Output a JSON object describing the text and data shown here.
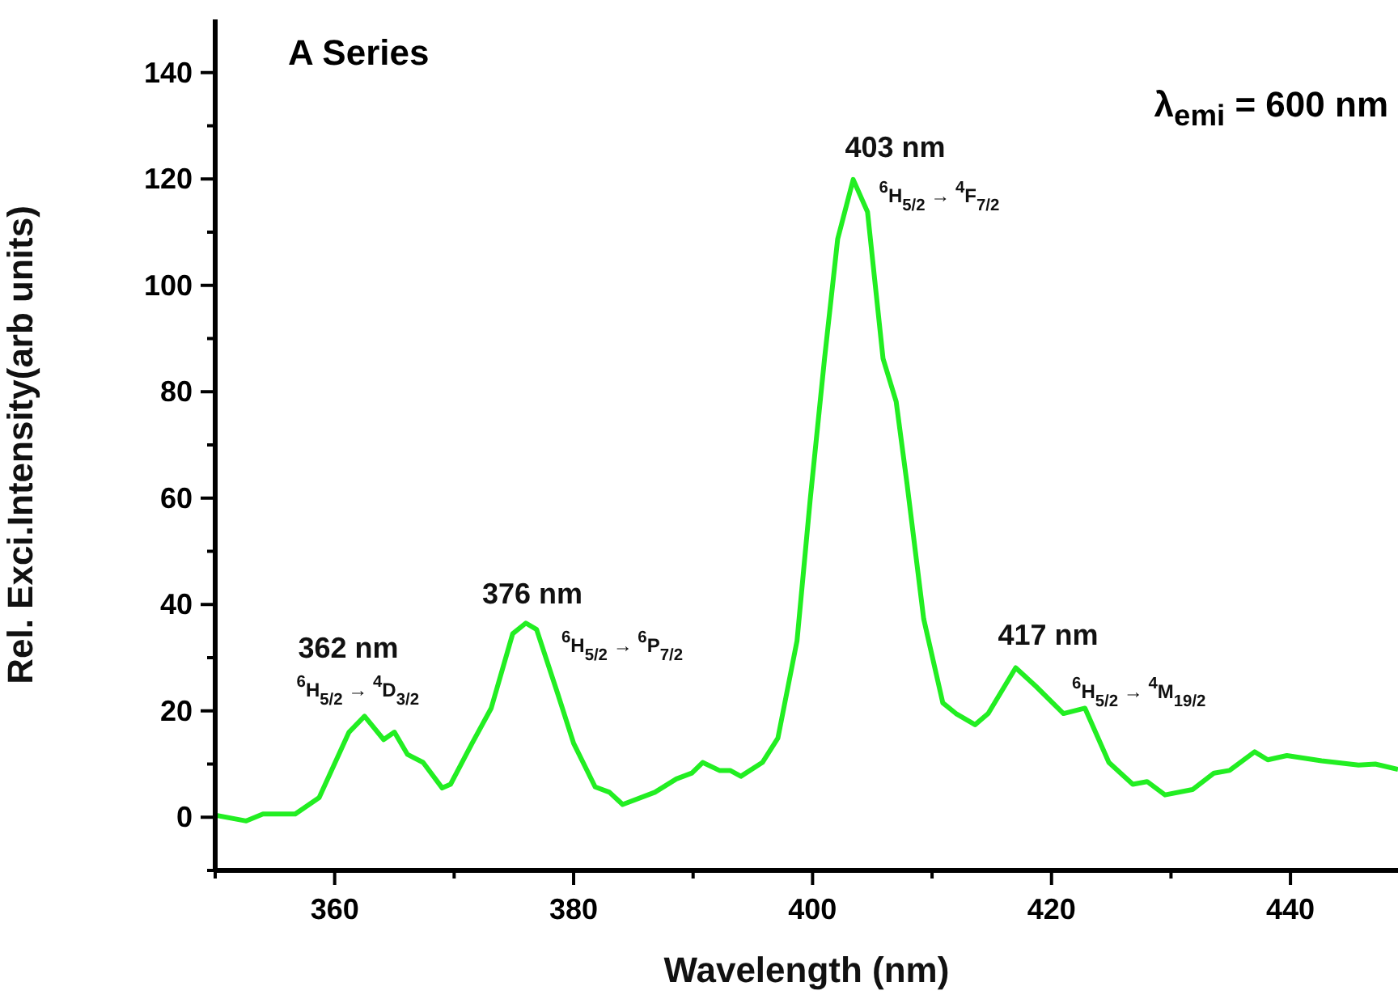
{
  "chart_data": {
    "type": "line",
    "title": "A Series",
    "xlabel": "Wavelength (nm)",
    "ylabel": "Rel. Exci.Intensity(arb units)",
    "xlim": [
      350,
      449
    ],
    "xticks": [
      {
        "value": 350,
        "label": null
      },
      360,
      {
        "value": 370,
        "label": null
      },
      380,
      {
        "value": 390,
        "label": null
      },
      400,
      {
        "value": 410,
        "label": null
      },
      420,
      {
        "value": 430,
        "label": null
      },
      440
    ],
    "ylim": [
      -10,
      150
    ],
    "yticks": [
      {
        "value": -10,
        "label": null
      },
      0,
      {
        "value": 10,
        "label": null
      },
      20,
      {
        "value": 30,
        "label": null
      },
      40,
      {
        "value": 50,
        "label": null
      },
      60,
      {
        "value": 70,
        "label": null
      },
      80,
      {
        "value": 90,
        "label": null
      },
      100,
      {
        "value": 110,
        "label": null
      },
      120,
      {
        "value": 130,
        "label": null
      },
      140
    ],
    "grid": false,
    "marker": "none",
    "line_style": "solid",
    "annotations": [
      {
        "text": "362 nm",
        "x": 362.5,
        "y": 19
      },
      {
        "text": "$^{6}$H$_{5/2}$ → $^{4}$D$_{3/2}$",
        "x": 362.5,
        "y": 19
      },
      {
        "text": "376 nm",
        "x": 376,
        "y": 36.5
      },
      {
        "text": "$^{6}$H$_{5/2}$ → $^{6}$P$_{7/2}$",
        "x": 376,
        "y": 36.5
      },
      {
        "text": "403 nm",
        "x": 403.4,
        "y": 119.9
      },
      {
        "text": "$^{6}$H$_{5/2}$ → $^{4}$F$_{7/2}$",
        "x": 403.4,
        "y": 119.9
      },
      {
        "text": "417 nm",
        "x": 417,
        "y": 28.1
      },
      {
        "text": "$^{6}$H$_{5/2}$ → $^{4}$M$_{19/2}$",
        "x": 422.8,
        "y": 20.5
      },
      "λ$_{emi}$ = 600 nm"
    ],
    "series": [
      {
        "color": "#22ee22",
        "x": [
          350,
          352.6,
          354,
          356.7,
          358.7,
          361.2,
          362.5,
          364.1,
          365,
          366.1,
          367.4,
          369,
          369.7,
          371.5,
          373.1,
          374.9,
          376,
          376.9,
          378.7,
          380,
          381.8,
          383,
          384.1,
          386.8,
          388.6,
          389.9,
          390.8,
          392.2,
          393.1,
          394,
          395.8,
          397.1,
          398.7,
          399.8,
          401,
          402.1,
          403.4,
          404.6,
          405.9,
          407,
          407.9,
          409.3,
          410.9,
          412,
          413.6,
          414.7,
          417,
          418.7,
          421,
          422.8,
          424.8,
          426.8,
          428,
          429.5,
          431.8,
          433.6,
          434.9,
          437,
          438.1,
          439.7,
          442.6,
          445.7,
          447.1,
          449
        ],
        "values": [
          0.4,
          -0.7,
          0.6,
          0.6,
          3.7,
          16,
          19,
          14.6,
          16,
          11.8,
          10.3,
          5.5,
          6.2,
          13.9,
          20.5,
          34.5,
          36.5,
          35.3,
          23,
          13.9,
          5.7,
          4.7,
          2.4,
          4.7,
          7.2,
          8.3,
          10.3,
          8.8,
          8.8,
          7.7,
          10.3,
          14.9,
          33.2,
          59.7,
          86.2,
          108.7,
          119.9,
          113.8,
          86.2,
          78.1,
          62.8,
          37.3,
          21.5,
          19.5,
          17.4,
          19.5,
          28.1,
          24.6,
          19.5,
          20.5,
          10.3,
          6.2,
          6.7,
          4.2,
          5.2,
          8.3,
          8.8,
          12.3,
          10.8,
          11.6,
          10.6,
          9.8,
          10,
          9
        ]
      }
    ]
  }
}
